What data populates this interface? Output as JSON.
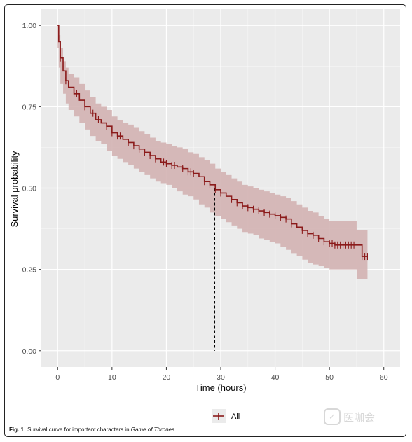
{
  "chart_data": {
    "type": "line",
    "title": "",
    "xlabel": "Time (hours)",
    "ylabel": "Survival probability",
    "xlim": [
      -3,
      63
    ],
    "ylim": [
      -0.05,
      1.05
    ],
    "x_ticks": [
      0,
      10,
      20,
      30,
      40,
      50,
      60
    ],
    "y_ticks": [
      0.0,
      0.25,
      0.5,
      0.75,
      1.0
    ],
    "x_tick_labels": [
      "0",
      "10",
      "20",
      "30",
      "40",
      "50",
      "60"
    ],
    "y_tick_labels": [
      "0.00",
      "0.25",
      "0.50",
      "0.75",
      "1.00"
    ],
    "grid": true,
    "legend_position": "bottom",
    "series": [
      {
        "name": "All",
        "color": "#8b1a1a",
        "band_color": "#d3b3b3",
        "step": true,
        "x": [
          0,
          0.2,
          0.5,
          1,
          1.5,
          2,
          3,
          4,
          5,
          6,
          7,
          8,
          9,
          10,
          11,
          12,
          13,
          14,
          15,
          16,
          17,
          18,
          19,
          20,
          21,
          22,
          23,
          24,
          25,
          26,
          27,
          28,
          29,
          30,
          31,
          32,
          33,
          34,
          35,
          36,
          37,
          38,
          39,
          40,
          41,
          42,
          43,
          44,
          45,
          46,
          47,
          48,
          49,
          50,
          51,
          52,
          53,
          54,
          55,
          56,
          57
        ],
        "y": [
          1.0,
          0.95,
          0.9,
          0.86,
          0.83,
          0.81,
          0.79,
          0.77,
          0.75,
          0.73,
          0.71,
          0.7,
          0.69,
          0.67,
          0.66,
          0.65,
          0.64,
          0.63,
          0.62,
          0.61,
          0.6,
          0.59,
          0.58,
          0.575,
          0.57,
          0.565,
          0.56,
          0.55,
          0.545,
          0.535,
          0.52,
          0.51,
          0.495,
          0.485,
          0.475,
          0.465,
          0.455,
          0.445,
          0.44,
          0.435,
          0.43,
          0.425,
          0.42,
          0.415,
          0.41,
          0.405,
          0.39,
          0.38,
          0.37,
          0.36,
          0.355,
          0.345,
          0.335,
          0.33,
          0.325,
          0.325,
          0.325,
          0.325,
          0.325,
          0.29,
          0.29
        ],
        "lower": [
          1.0,
          0.93,
          0.87,
          0.82,
          0.79,
          0.76,
          0.74,
          0.72,
          0.7,
          0.68,
          0.66,
          0.645,
          0.635,
          0.615,
          0.6,
          0.59,
          0.58,
          0.57,
          0.56,
          0.55,
          0.54,
          0.53,
          0.52,
          0.515,
          0.51,
          0.5,
          0.49,
          0.48,
          0.475,
          0.465,
          0.45,
          0.44,
          0.425,
          0.415,
          0.405,
          0.395,
          0.385,
          0.375,
          0.365,
          0.36,
          0.355,
          0.345,
          0.34,
          0.335,
          0.33,
          0.32,
          0.31,
          0.3,
          0.29,
          0.28,
          0.27,
          0.265,
          0.26,
          0.255,
          0.25,
          0.25,
          0.25,
          0.25,
          0.25,
          0.22,
          0.22
        ],
        "upper": [
          1.0,
          0.97,
          0.93,
          0.89,
          0.87,
          0.85,
          0.84,
          0.82,
          0.8,
          0.78,
          0.76,
          0.75,
          0.74,
          0.72,
          0.71,
          0.7,
          0.695,
          0.685,
          0.675,
          0.665,
          0.655,
          0.645,
          0.64,
          0.635,
          0.63,
          0.625,
          0.62,
          0.61,
          0.605,
          0.595,
          0.585,
          0.575,
          0.56,
          0.55,
          0.54,
          0.53,
          0.52,
          0.51,
          0.505,
          0.5,
          0.495,
          0.49,
          0.485,
          0.48,
          0.475,
          0.47,
          0.46,
          0.45,
          0.44,
          0.43,
          0.425,
          0.415,
          0.405,
          0.4,
          0.4,
          0.4,
          0.4,
          0.4,
          0.37,
          0.37,
          0.37
        ],
        "censor_x": [
          0.5,
          1.5,
          3,
          3.5,
          5,
          6.5,
          7.5,
          9,
          10,
          11,
          11.5,
          13,
          14,
          15,
          16,
          17,
          18,
          19.5,
          20,
          21,
          21.5,
          23,
          24,
          24.5,
          25,
          27,
          28,
          29,
          30,
          32,
          33,
          34,
          35,
          36,
          37,
          38,
          39,
          40,
          41,
          42,
          43,
          45,
          46,
          47,
          48,
          49,
          50,
          50.5,
          51,
          51.5,
          52,
          52.5,
          53,
          53.5,
          54,
          54.5,
          56,
          56.5,
          57
        ]
      }
    ],
    "median_line": {
      "x": 28.9,
      "y": 0.5
    }
  },
  "legend": {
    "label": "All"
  },
  "caption": {
    "fig_label": "Fig. 1",
    "text": "Survival curve for important characters in",
    "italic": "Game of Thrones"
  },
  "watermark": {
    "text": "医咖会"
  }
}
